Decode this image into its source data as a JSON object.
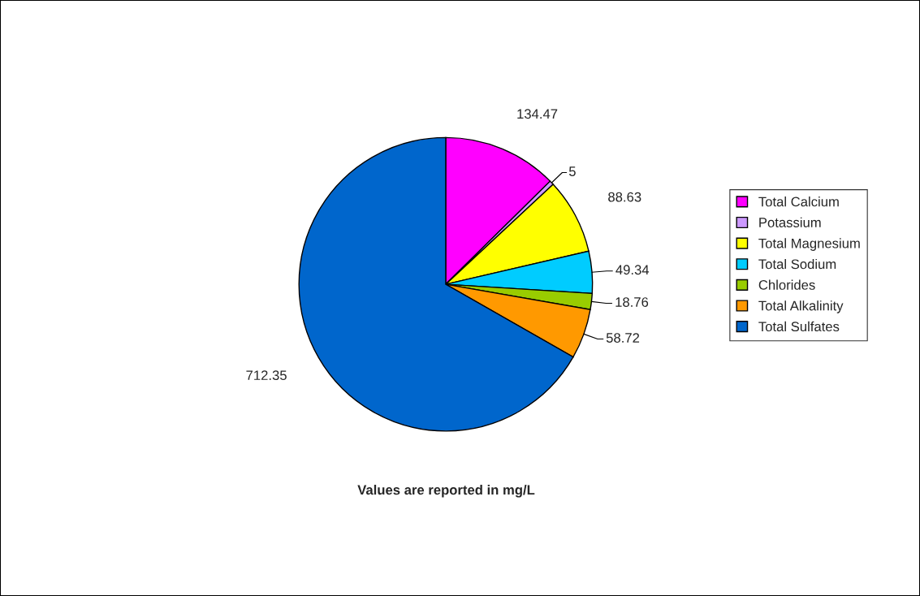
{
  "chart_data": {
    "type": "pie",
    "title": "Values are reported in mg/L",
    "categories": [
      "Total Calcium",
      "Potassium",
      "Total Magnesium",
      "Total Sodium",
      "Chlorides",
      "Total Alkalinity",
      "Total Sulfates"
    ],
    "values": [
      134.47,
      5,
      88.63,
      49.34,
      18.76,
      58.72,
      712.35
    ],
    "colors": [
      "#ff00ff",
      "#cc99ff",
      "#ffff00",
      "#00ccff",
      "#99cc00",
      "#ff9900",
      "#0066cc"
    ],
    "data_labels": true,
    "legend": "right"
  }
}
